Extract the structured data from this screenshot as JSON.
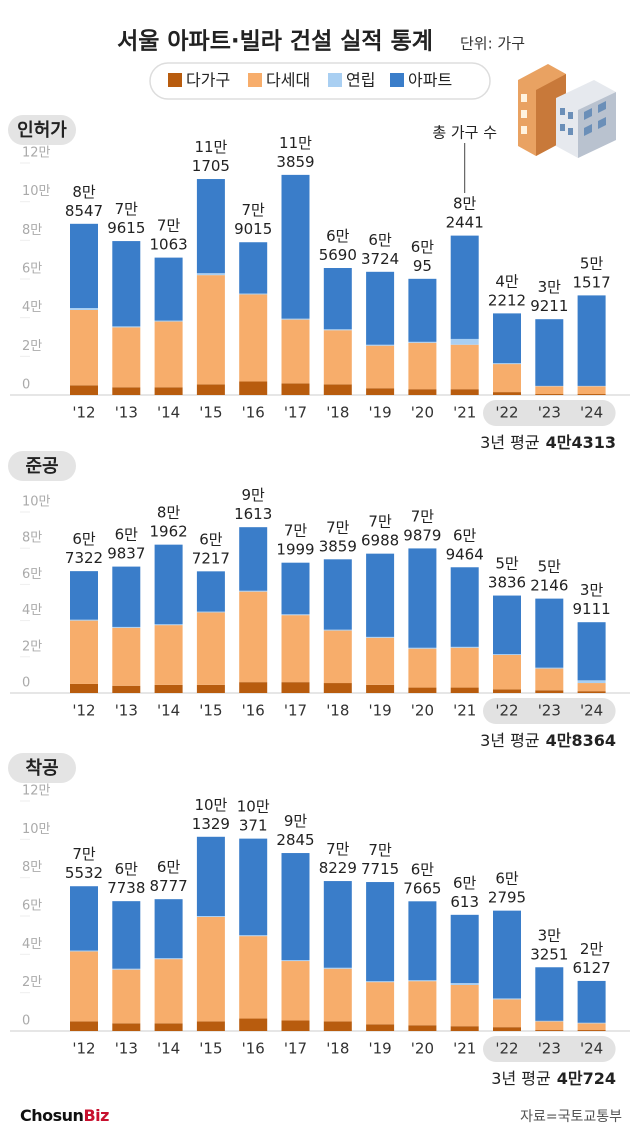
{
  "header": {
    "title": "서울 아파트·빌라 건설 실적 통계",
    "unit": "단위: 가구"
  },
  "footer": {
    "logo": [
      "Chosun",
      "Biz"
    ],
    "source": "자료=국토교통부"
  },
  "chart_data": [
    {
      "type": "stacked-bar",
      "title": "인허가",
      "categories": [
        "'12",
        "'13",
        "'14",
        "'15",
        "'16",
        "'17",
        "'18",
        "'19",
        "'20",
        "'21",
        "'22",
        "'23",
        "'24"
      ],
      "series": [
        {
          "name": "다가구",
          "color": "#b85c0e",
          "values": [
            5000,
            4000,
            4000,
            5500,
            7000,
            6000,
            5500,
            3500,
            3000,
            3000,
            1500,
            500,
            500
          ]
        },
        {
          "name": "다세대",
          "color": "#f7ad6b",
          "values": [
            39000,
            31000,
            34000,
            56500,
            45000,
            33000,
            28000,
            22000,
            24000,
            23000,
            14500,
            4000,
            4000
          ]
        },
        {
          "name": "연립",
          "color": "#a9cff2",
          "values": [
            1000,
            500,
            500,
            1000,
            500,
            500,
            500,
            500,
            500,
            3000,
            500,
            200,
            200
          ]
        },
        {
          "name": "아파트",
          "color": "#3a7dc9",
          "values": [
            43547,
            44115,
            32563,
            48705,
            26515,
            74359,
            31690,
            37724,
            32595,
            53441,
            25712,
            34511,
            46817
          ]
        }
      ],
      "totals": [
        88547,
        79615,
        71063,
        111705,
        79015,
        113859,
        65690,
        63724,
        60095,
        82441,
        42212,
        39211,
        51517
      ],
      "total_labels": [
        [
          "8만",
          "8547"
        ],
        [
          "7만",
          "9615"
        ],
        [
          "7만",
          "1063"
        ],
        [
          "11만",
          "1705"
        ],
        [
          "7만",
          "9015"
        ],
        [
          "11만",
          "3859"
        ],
        [
          "6만",
          "5690"
        ],
        [
          "6만",
          "3724"
        ],
        [
          "6만",
          "95"
        ],
        [
          "8만",
          "2441"
        ],
        [
          "4만",
          "2212"
        ],
        [
          "3만",
          "9211"
        ],
        [
          "5만",
          "1517"
        ]
      ],
      "annotation": "총 가구 수",
      "average_label": "3년 평균",
      "average_value": "4만4313",
      "ylim": [
        0,
        120000
      ],
      "yticks": [
        0,
        {
          "value": 20000,
          "label": "2만"
        },
        {
          "value": 40000,
          "label": "4만"
        },
        {
          "value": 60000,
          "label": "6만"
        },
        {
          "value": 80000,
          "label": "8만"
        },
        {
          "value": 100000,
          "label": "10만"
        },
        {
          "value": 120000,
          "label": "12만"
        }
      ]
    },
    {
      "type": "stacked-bar",
      "title": "준공",
      "categories": [
        "'12",
        "'13",
        "'14",
        "'15",
        "'16",
        "'17",
        "'18",
        "'19",
        "'20",
        "'21",
        "'22",
        "'23",
        "'24"
      ],
      "series": [
        {
          "name": "다가구",
          "color": "#b85c0e",
          "values": [
            5000,
            4000,
            4500,
            4500,
            6000,
            6000,
            5500,
            4500,
            3000,
            3000,
            2000,
            1500,
            1000
          ]
        },
        {
          "name": "다세대",
          "color": "#f7ad6b",
          "values": [
            35000,
            32000,
            33000,
            40000,
            50000,
            37000,
            29000,
            26000,
            21500,
            22000,
            19000,
            12000,
            4500
          ]
        },
        {
          "name": "연립",
          "color": "#a9cff2",
          "values": [
            500,
            500,
            500,
            500,
            500,
            500,
            500,
            500,
            500,
            500,
            500,
            500,
            1500
          ]
        },
        {
          "name": "아파트",
          "color": "#3a7dc9",
          "values": [
            26822,
            33337,
            43962,
            22217,
            35113,
            28499,
            38859,
            45988,
            54879,
            43964,
            32336,
            38146,
            32111
          ]
        }
      ],
      "totals": [
        67322,
        69837,
        81962,
        67217,
        91613,
        71999,
        73859,
        76988,
        79879,
        69464,
        53836,
        52146,
        39111
      ],
      "total_labels": [
        [
          "6만",
          "7322"
        ],
        [
          "6만",
          "9837"
        ],
        [
          "8만",
          "1962"
        ],
        [
          "6만",
          "7217"
        ],
        [
          "9만",
          "1613"
        ],
        [
          "7만",
          "1999"
        ],
        [
          "7만",
          "3859"
        ],
        [
          "7만",
          "6988"
        ],
        [
          "7만",
          "9879"
        ],
        [
          "6만",
          "9464"
        ],
        [
          "5만",
          "3836"
        ],
        [
          "5만",
          "2146"
        ],
        [
          "3만",
          "9111"
        ]
      ],
      "average_label": "3년 평균",
      "average_value": "4만8364",
      "ylim": [
        0,
        100000
      ],
      "yticks": [
        0,
        {
          "value": 20000,
          "label": "2만"
        },
        {
          "value": 40000,
          "label": "4만"
        },
        {
          "value": 60000,
          "label": "6만"
        },
        {
          "value": 80000,
          "label": "8만"
        },
        {
          "value": 100000,
          "label": "10만"
        }
      ]
    },
    {
      "type": "stacked-bar",
      "title": "착공",
      "categories": [
        "'12",
        "'13",
        "'14",
        "'15",
        "'16",
        "'17",
        "'18",
        "'19",
        "'20",
        "'21",
        "'22",
        "'23",
        "'24"
      ],
      "series": [
        {
          "name": "다가구",
          "color": "#b85c0e",
          "values": [
            5000,
            4000,
            4000,
            5000,
            6500,
            5500,
            5000,
            3500,
            3000,
            2500,
            2000,
            500,
            500
          ]
        },
        {
          "name": "다세대",
          "color": "#f7ad6b",
          "values": [
            36500,
            28000,
            33500,
            54500,
            43000,
            31000,
            27500,
            22000,
            23000,
            21500,
            14500,
            4500,
            3500
          ]
        },
        {
          "name": "연립",
          "color": "#a9cff2",
          "values": [
            500,
            500,
            500,
            500,
            500,
            500,
            500,
            500,
            500,
            1000,
            500,
            300,
            300
          ]
        },
        {
          "name": "아파트",
          "color": "#3a7dc9",
          "values": [
            33532,
            35238,
            30777,
            41329,
            50371,
            55845,
            45229,
            51715,
            41165,
            35613,
            45795,
            27951,
            21827
          ]
        }
      ],
      "totals": [
        75532,
        67738,
        68777,
        101329,
        100371,
        92845,
        78229,
        77715,
        67665,
        60613,
        62795,
        33251,
        26127
      ],
      "total_labels": [
        [
          "7만",
          "5532"
        ],
        [
          "6만",
          "7738"
        ],
        [
          "6만",
          "8777"
        ],
        [
          "10만",
          "1329"
        ],
        [
          "10만",
          "371"
        ],
        [
          "9만",
          "2845"
        ],
        [
          "7만",
          "8229"
        ],
        [
          "7만",
          "7715"
        ],
        [
          "6만",
          "7665"
        ],
        [
          "6만",
          "613"
        ],
        [
          "6만",
          "2795"
        ],
        [
          "3만",
          "3251"
        ],
        [
          "2만",
          "6127"
        ]
      ],
      "average_label": "3년 평균",
      "average_value": "4만724",
      "ylim": [
        0,
        120000
      ],
      "yticks": [
        0,
        {
          "value": 20000,
          "label": "2만"
        },
        {
          "value": 40000,
          "label": "4만"
        },
        {
          "value": 60000,
          "label": "6만"
        },
        {
          "value": 80000,
          "label": "8만"
        },
        {
          "value": 100000,
          "label": "10만"
        },
        {
          "value": 120000,
          "label": "12만"
        }
      ]
    }
  ]
}
